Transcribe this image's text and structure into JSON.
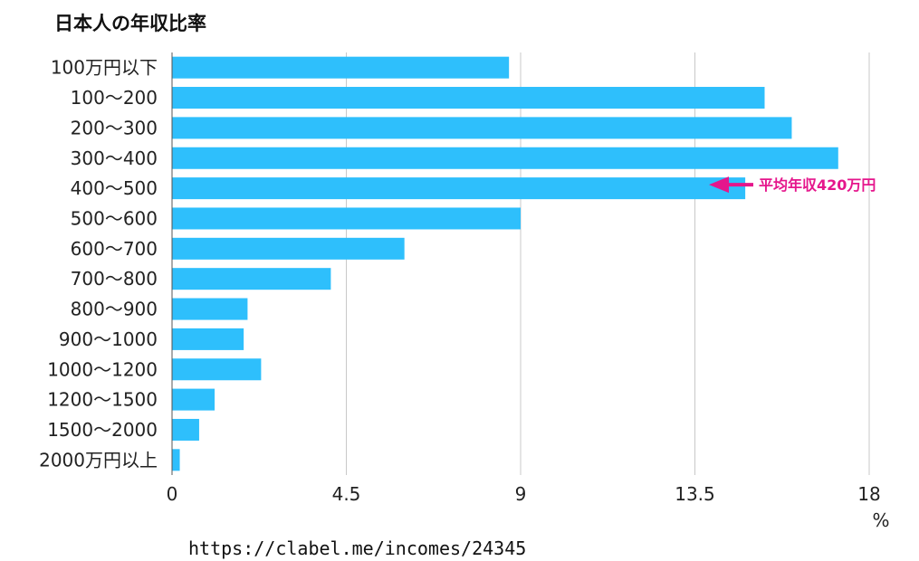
{
  "title": "日本人の年収比率",
  "source_url": "https://clabel.me/incomes/24345",
  "chart_data": {
    "type": "bar",
    "orientation": "horizontal",
    "title": "日本人の年収比率",
    "xlabel": "%",
    "ylabel": "",
    "xlim": [
      0,
      18
    ],
    "xticks": [
      0,
      4.5,
      9,
      13.5,
      18
    ],
    "xtick_labels": [
      "0",
      "4.5",
      "9",
      "13.5",
      "18"
    ],
    "grid": true,
    "bar_color": "#2EBFFC",
    "categories": [
      "100万円以下",
      "100〜200",
      "200〜300",
      "300〜400",
      "400〜500",
      "500〜600",
      "600〜700",
      "700〜800",
      "800〜900",
      "900〜1000",
      "1000〜1200",
      "1200〜1500",
      "1500〜2000",
      "2000万円以上"
    ],
    "values": [
      8.7,
      15.3,
      16.0,
      17.2,
      14.8,
      9.0,
      6.0,
      4.1,
      1.95,
      1.85,
      2.3,
      1.1,
      0.7,
      0.2
    ],
    "annotation": {
      "text": "平均年収420万円",
      "category": "400〜500",
      "color": "#E5168C"
    }
  }
}
